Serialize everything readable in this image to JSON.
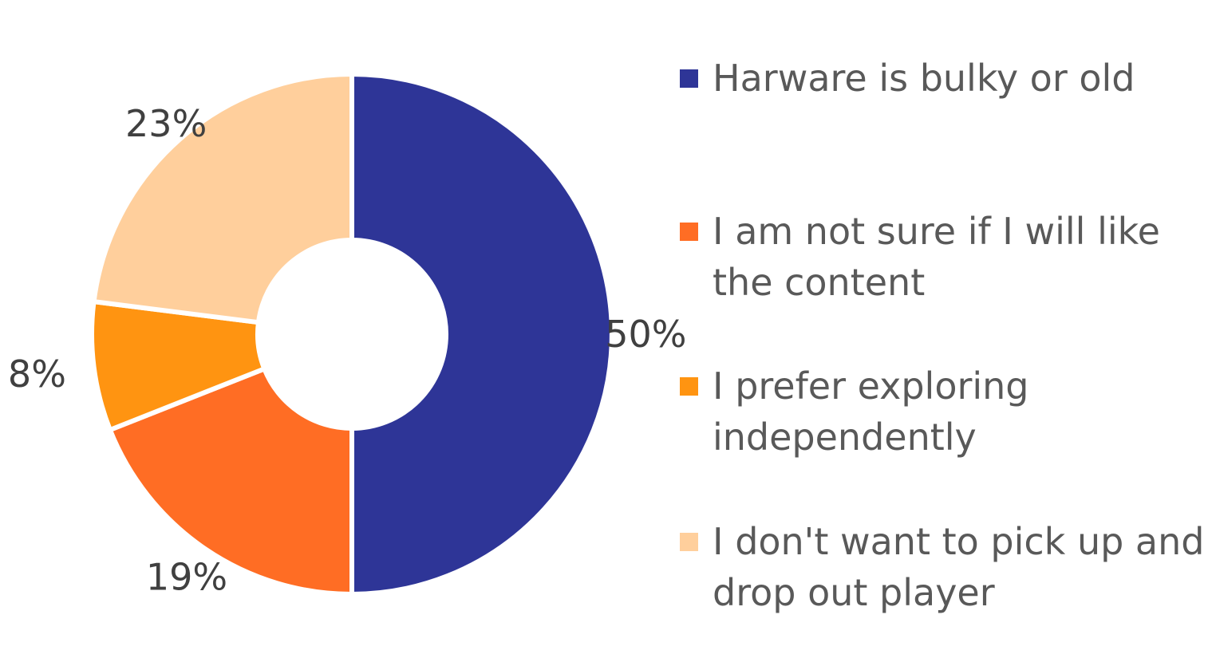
{
  "chart_data": {
    "type": "pie",
    "style": "donut",
    "legend_position": "right",
    "slices": [
      {
        "label": "Harware is bulky or old",
        "value": 50,
        "value_label": "50%",
        "color": "#2E3597"
      },
      {
        "label": "I am not sure if I will like the content",
        "value": 19,
        "value_label": "19%",
        "color": "#FF6D24"
      },
      {
        "label": "I prefer exploring independently",
        "value": 8,
        "value_label": "8%",
        "color": "#FF9411"
      },
      {
        "label": "I don't want to pick up and drop out player",
        "value": 23,
        "value_label": "23%",
        "color": "#FFCF9C"
      }
    ]
  }
}
